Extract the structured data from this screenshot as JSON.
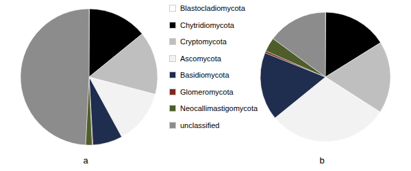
{
  "chart_data": [
    {
      "type": "pie",
      "title": "a",
      "categories": [
        "Blastocladiomycota",
        "Chytridiomycota",
        "Cryptomycota",
        "Ascomycota",
        "Basidiomycota",
        "Glomeromycota",
        "Neocallimastigomycota",
        "unclassified"
      ],
      "values": [
        0.1,
        14,
        15,
        13,
        7,
        0.2,
        1.5,
        49.2
      ],
      "colors": [
        "#ffffff",
        "#000000",
        "#bfbfbf",
        "#f2f2f2",
        "#1f2d4e",
        "#7b2a1e",
        "#4e5d2a",
        "#8c8c8c"
      ]
    },
    {
      "type": "pie",
      "title": "b",
      "categories": [
        "Blastocladiomycota",
        "Chytridiomycota",
        "Cryptomycota",
        "Ascomycota",
        "Basidiomycota",
        "Glomeromycota",
        "Neocallimastigomycota",
        "unclassified"
      ],
      "values": [
        0.1,
        16,
        18,
        30,
        17,
        0.5,
        3.5,
        14.9
      ],
      "colors": [
        "#ffffff",
        "#000000",
        "#bfbfbf",
        "#f2f2f2",
        "#1f2d4e",
        "#7b2a1e",
        "#4e5d2a",
        "#8c8c8c"
      ]
    }
  ]
}
